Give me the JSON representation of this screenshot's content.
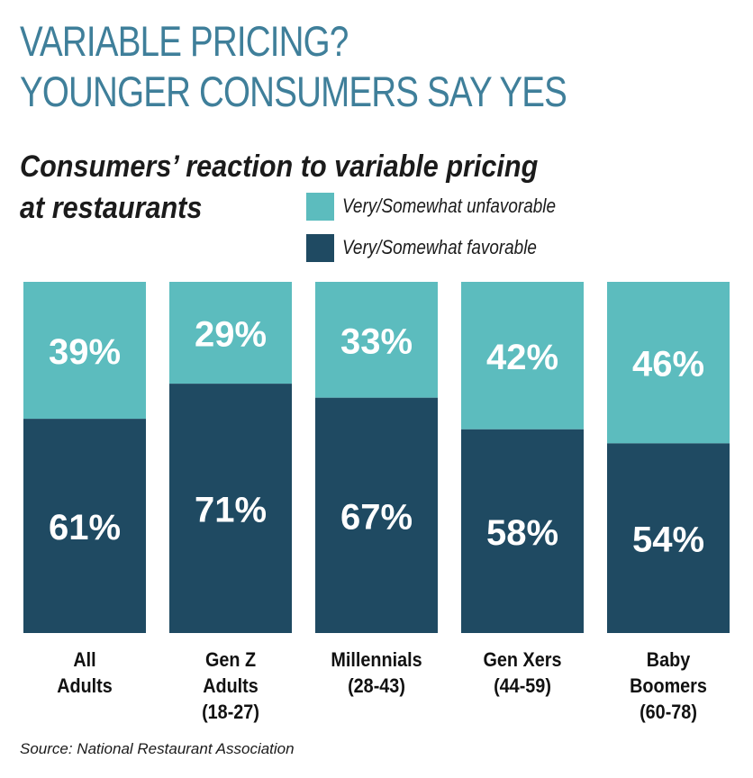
{
  "headline": {
    "line1": "VARIABLE PRICING?",
    "line2": "YOUNGER CONSUMERS SAY YES"
  },
  "subtitle": {
    "line1": "Consumers’ reaction to variable pricing",
    "line2": "at restaurants"
  },
  "source": "Source: National Restaurant Association",
  "colors": {
    "unfavorable": "#5cbcbe",
    "favorable": "#1f4a62",
    "headline": "#3f7f9a",
    "value_text": "#ffffff"
  },
  "chart_data": {
    "type": "bar",
    "stacked": true,
    "percent_stacked": true,
    "title": "Consumers’ reaction to variable pricing at restaurants",
    "categories": [
      [
        "All",
        "Adults"
      ],
      [
        "Gen Z",
        "Adults",
        "(18-27)"
      ],
      [
        "Millennials",
        "(28-43)"
      ],
      [
        "Gen Xers",
        "(44-59)"
      ],
      [
        "Baby",
        "Boomers",
        "(60-78)"
      ]
    ],
    "series": [
      {
        "name": "Very/Somewhat favorable",
        "values": [
          61,
          71,
          67,
          58,
          54
        ],
        "labels": [
          "61%",
          "71%",
          "67%",
          "58%",
          "54%"
        ]
      },
      {
        "name": "Very/Somewhat unfavorable",
        "values": [
          39,
          29,
          33,
          42,
          46
        ],
        "labels": [
          "39%",
          "29%",
          "33%",
          "42%",
          "46%"
        ]
      }
    ],
    "legend": [
      "Very/Somewhat unfavorable",
      "Very/Somewhat favorable"
    ],
    "legend_position": "top-right",
    "ylim": [
      0,
      100
    ],
    "grid": false
  }
}
